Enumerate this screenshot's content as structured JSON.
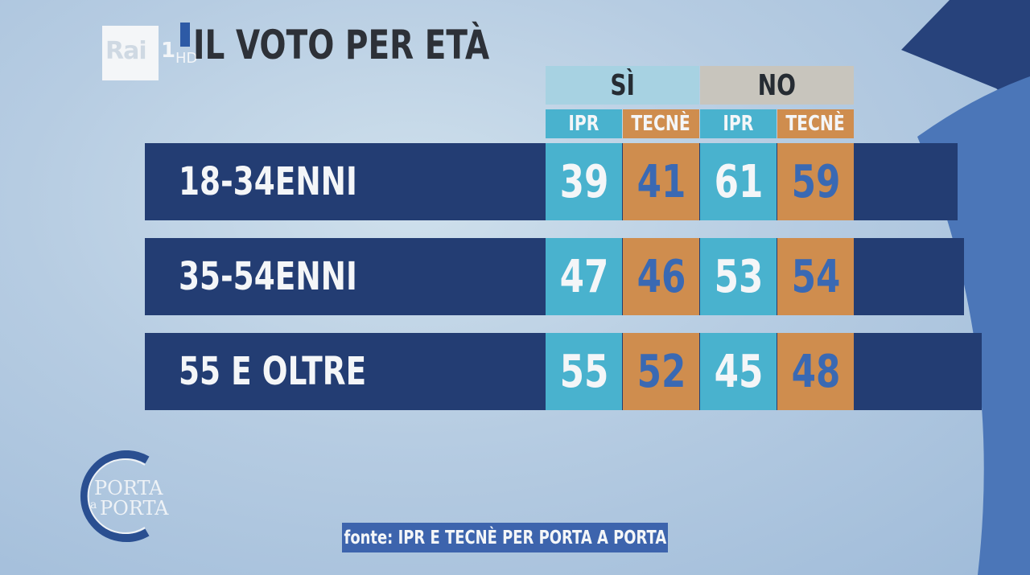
{
  "header": {
    "channel_logo": "Rai",
    "channel_number": "1",
    "channel_hd": "HD",
    "title": "IL VOTO PER ETÀ"
  },
  "chart_data": {
    "type": "table",
    "title": "IL VOTO PER ETÀ",
    "groups": [
      {
        "name": "SÌ",
        "columns": [
          "IPR",
          "TECNÈ"
        ]
      },
      {
        "name": "NO",
        "columns": [
          "IPR",
          "TECNÈ"
        ]
      }
    ],
    "rows": [
      {
        "label": "18-34ENNI",
        "values": [
          39,
          41,
          61,
          59
        ]
      },
      {
        "label": "35-54ENNI",
        "values": [
          47,
          46,
          53,
          54
        ]
      },
      {
        "label": "55 E OLTRE",
        "values": [
          55,
          52,
          45,
          48
        ]
      }
    ],
    "source": "fonte: IPR E TECNÈ PER PORTA A PORTA"
  },
  "brand": {
    "line1": "PORTA",
    "line2": "a",
    "line3": "PORTA"
  },
  "colors": {
    "row_bg": "#233d73",
    "ipr": "#49b2ce",
    "tecne": "#cf8d4e",
    "si_header": "#a7d2e2",
    "no_header": "#c8c5bd",
    "tecne_text": "#3a69b3"
  }
}
